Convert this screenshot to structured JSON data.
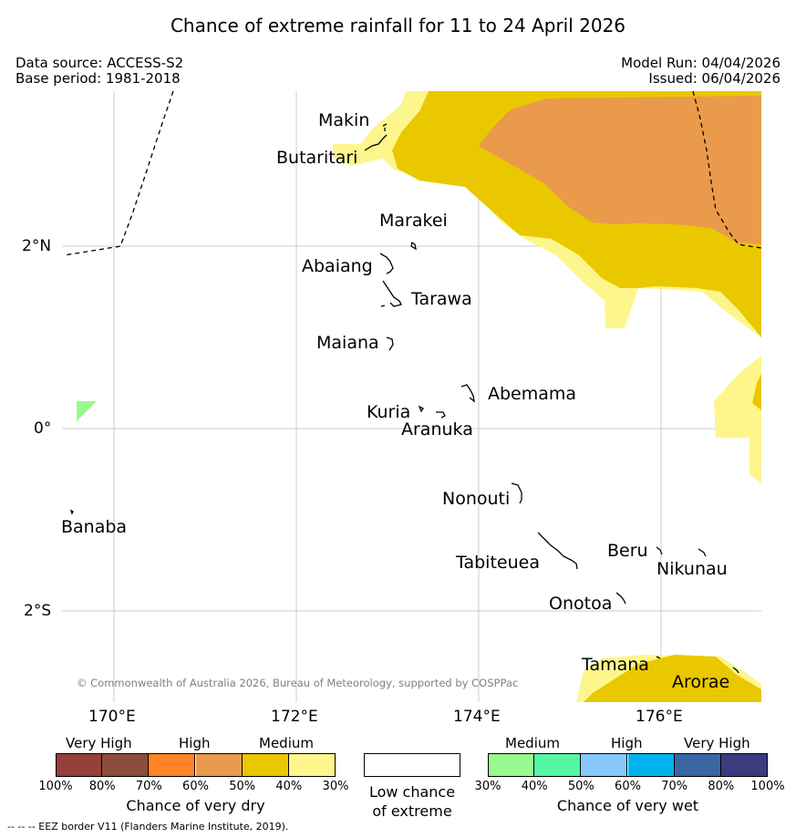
{
  "title": "Chance of extreme rainfall for 11 to 24 April 2026",
  "left_meta": {
    "source": "Data source: ACCESS-S2",
    "base": "Base period: 1981-2018"
  },
  "right_meta": {
    "run": "Model Run: 04/04/2026",
    "issued": "Issued: 06/04/2026"
  },
  "axes": {
    "lat_ticks": [
      "2°N",
      "0°",
      "2°S"
    ],
    "lon_ticks": [
      "170°E",
      "172°E",
      "174°E",
      "176°E"
    ]
  },
  "places": {
    "makin": "Makin",
    "butaritari": "Butaritari",
    "marakei": "Marakei",
    "abaiang": "Abaiang",
    "tarawa": "Tarawa",
    "maiana": "Maiana",
    "abemama": "Abemama",
    "kuria": "Kuria",
    "aranuka": "Aranuka",
    "banaba": "Banaba",
    "nonouti": "Nonouti",
    "tabiteuea": "Tabiteuea",
    "beru": "Beru",
    "nikunau": "Nikunau",
    "onotoa": "Onotoa",
    "tamana": "Tamana",
    "arorae": "Arorae"
  },
  "copyright": "© Commonwealth of Australia 2026, Bureau of Meteorology, supported by COSPPac",
  "legend": {
    "dry": {
      "headers": [
        "Very High",
        "High",
        "Medium"
      ],
      "ticks": [
        "100%",
        "80%",
        "70%",
        "60%",
        "50%",
        "40%",
        "30%"
      ],
      "colors": [
        "#96403a",
        "#8c4e3c",
        "#ff8426",
        "#ea9a4b",
        "#eac800",
        "#fdf68c"
      ],
      "title": "Chance of very dry"
    },
    "low": {
      "title_line1": "Low chance",
      "title_line2": "of extreme"
    },
    "wet": {
      "headers": [
        "Medium",
        "High",
        "Very High"
      ],
      "ticks": [
        "30%",
        "40%",
        "50%",
        "60%",
        "70%",
        "80%",
        "100%"
      ],
      "colors": [
        "#98f98f",
        "#55f7a5",
        "#87c7fa",
        "#00b3ee",
        "#3a66a4",
        "#393d7f"
      ],
      "title": "Chance of very wet"
    }
  },
  "eez_note": "--  --  -- EEZ border V11 (Flanders Marine Institute, 2019)."
}
